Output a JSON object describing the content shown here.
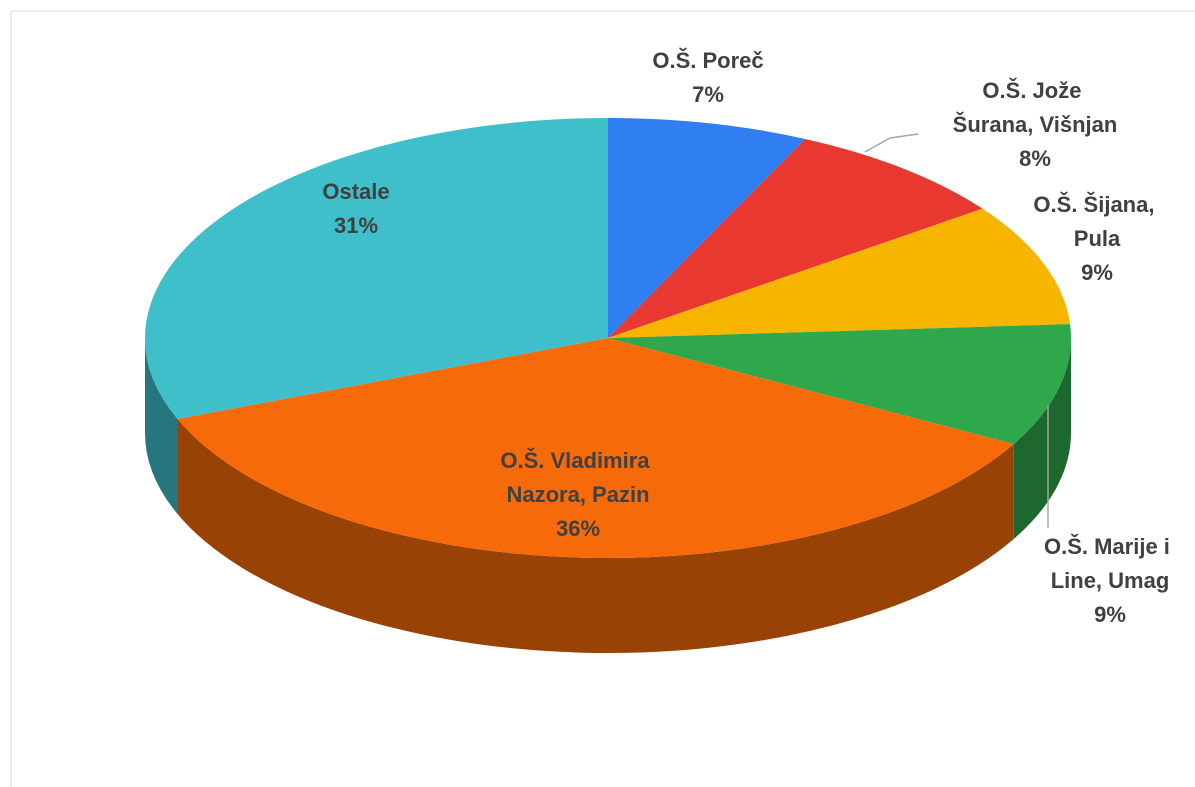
{
  "chart_data": {
    "type": "pie3d",
    "categories": [
      "O.Š. Poreč",
      "O.Š. Jože Šurana, Višnjan",
      "O.Š. Šijana, Pula",
      "O.Š. Marije i Line, Umag",
      "O.Š. Vladimira Nazora, Pazin",
      "Ostale"
    ],
    "values": [
      7,
      8,
      9,
      9,
      36,
      31
    ],
    "value_labels": [
      "7%",
      "8%",
      "9%",
      "9%",
      "36%",
      "31%"
    ],
    "colors": [
      "#2f7ff2",
      "#e8382f",
      "#f7b500",
      "#2ea84b",
      "#f76a0a",
      "#3ebfca"
    ]
  }
}
